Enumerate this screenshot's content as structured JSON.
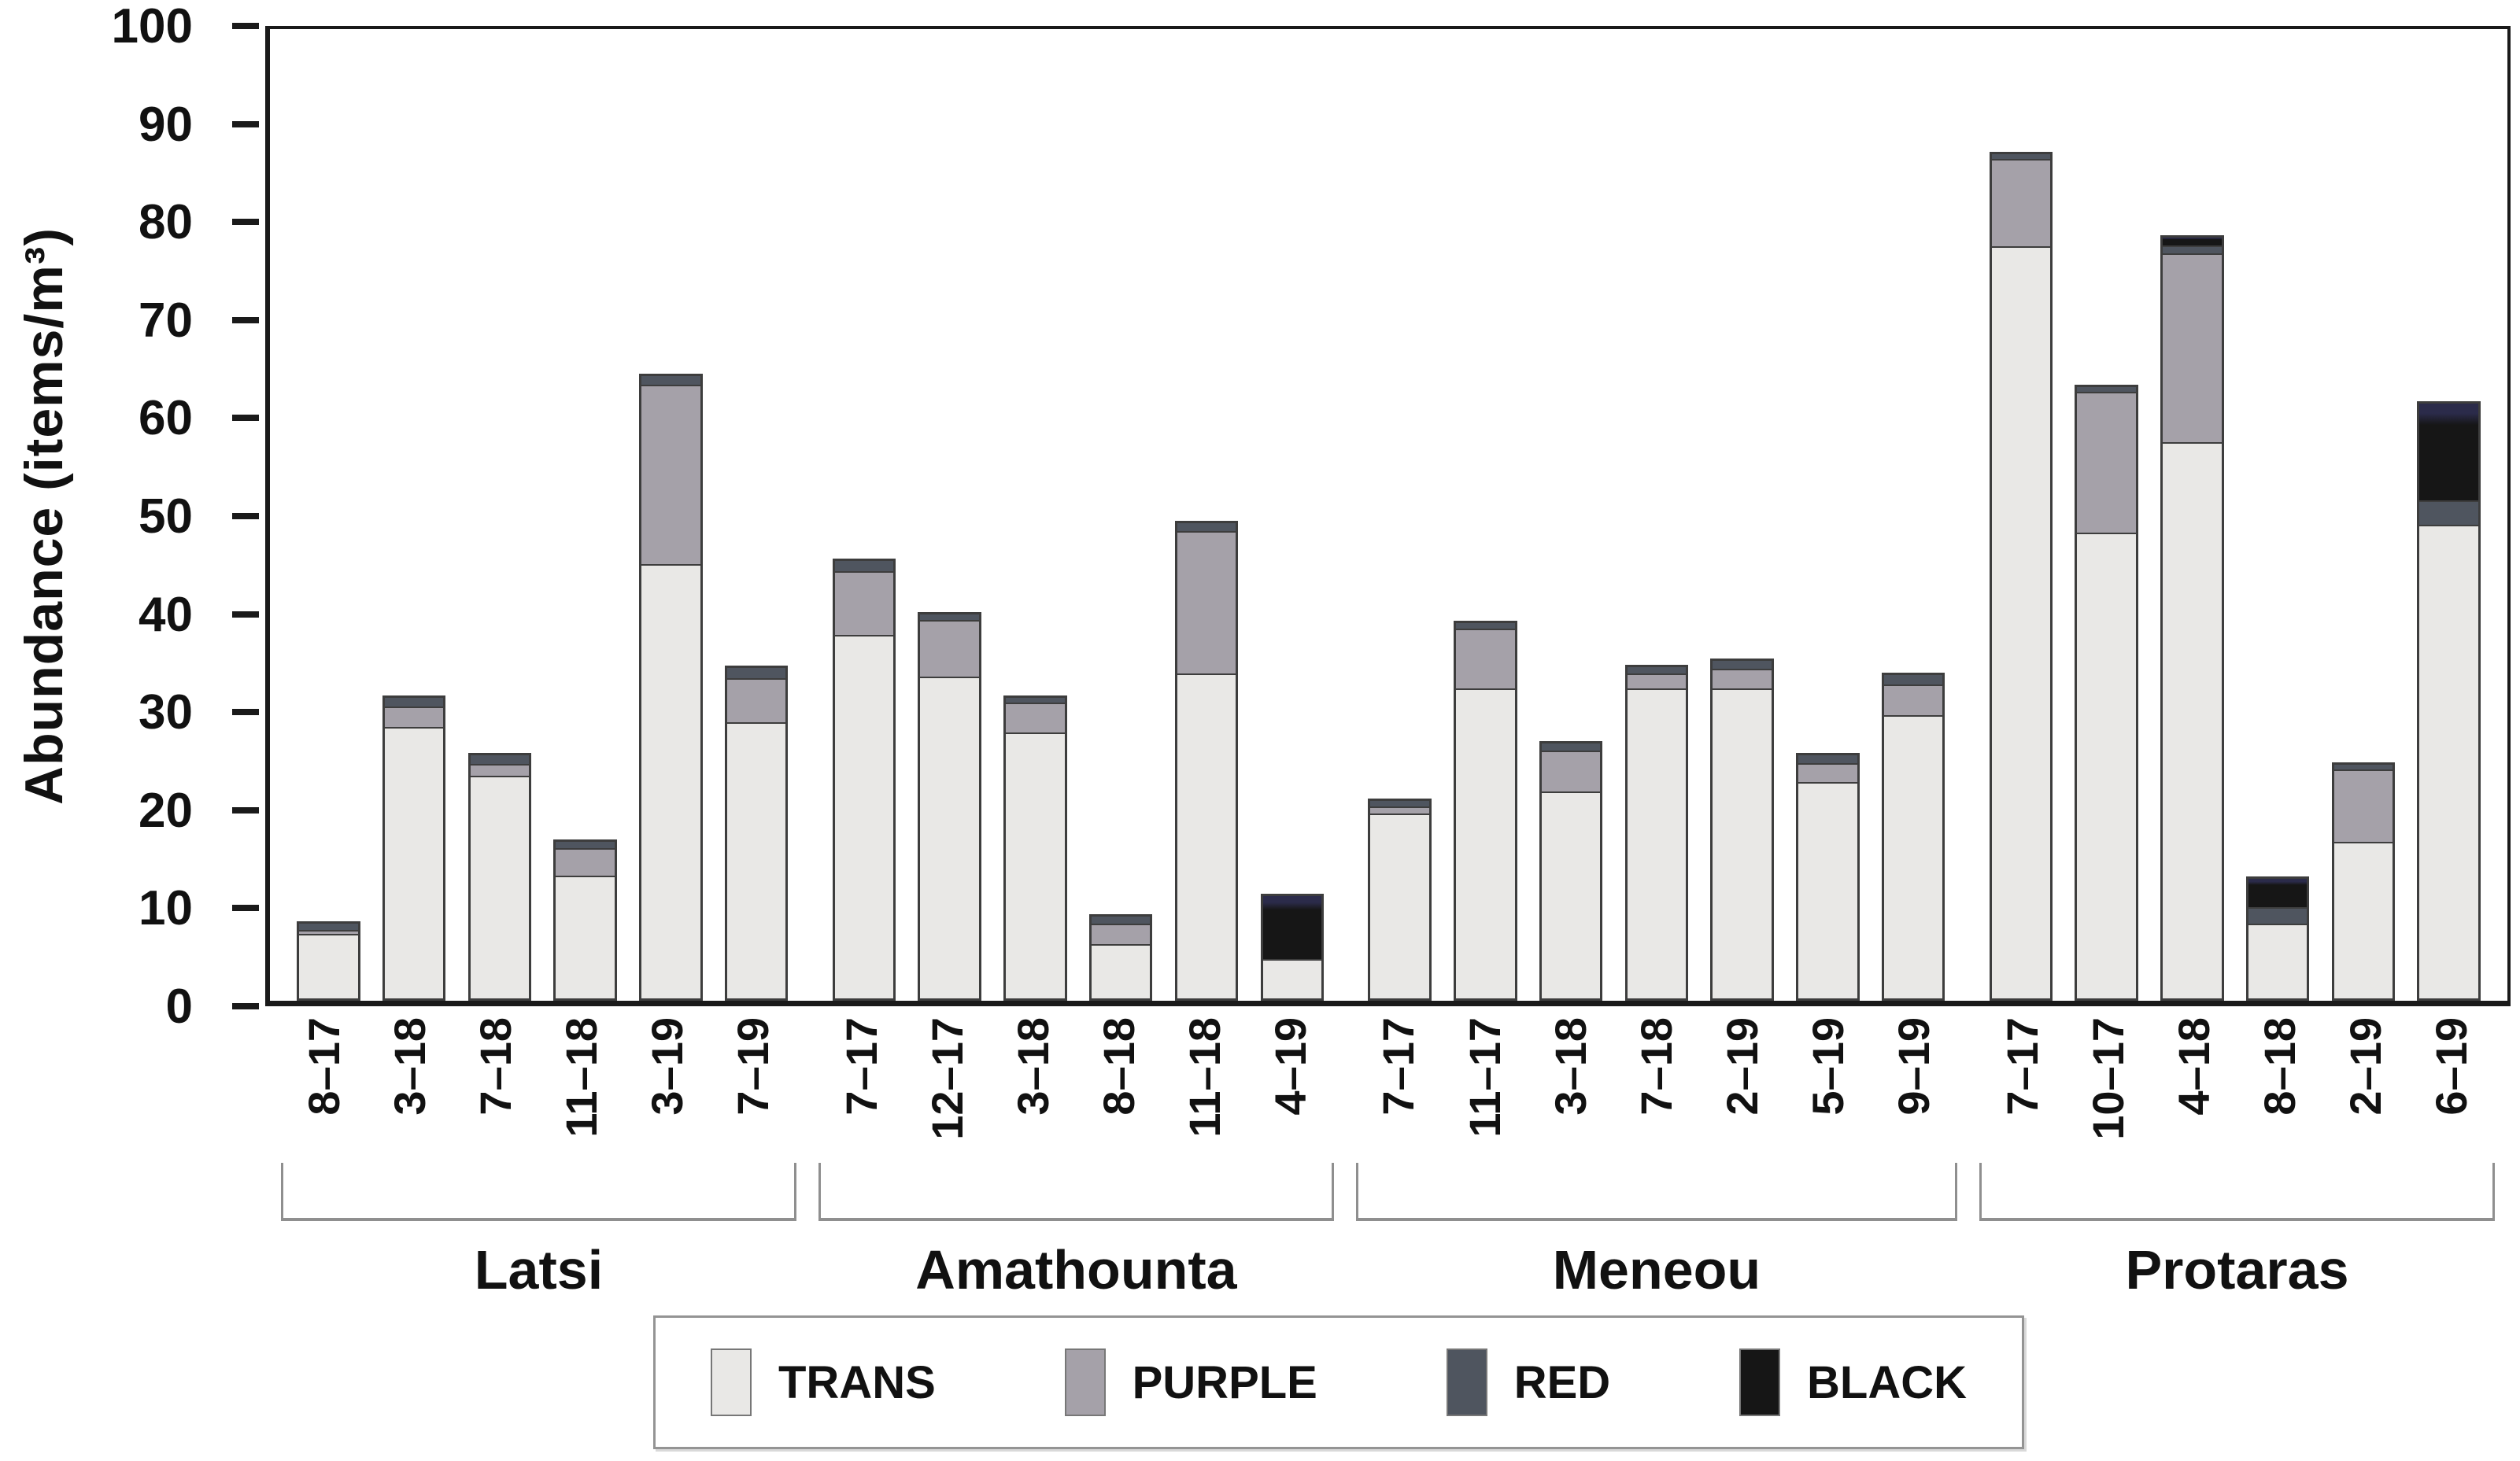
{
  "chart_data": {
    "type": "bar",
    "stacked": true,
    "title": "",
    "xlabel": "",
    "ylabel": "Abundance (items/m³)",
    "ylim": [
      0,
      100
    ],
    "yticks": [
      0,
      10,
      20,
      30,
      40,
      50,
      60,
      70,
      80,
      90,
      100
    ],
    "grid": false,
    "legend_position": "bottom",
    "stack_order": [
      "TRANS",
      "PURPLE",
      "RED",
      "BLACK"
    ],
    "colors": {
      "TRANS": "#e9e8e6",
      "PURPLE": "#a5a1a9",
      "RED": "#4f555f",
      "BLACK": "#161616"
    },
    "groups": [
      {
        "name": "Latsi",
        "bars": [
          {
            "label": "8–17",
            "TRANS": 7.2,
            "PURPLE": 0.3,
            "RED": 0.7,
            "BLACK": 0
          },
          {
            "label": "3–18",
            "TRANS": 28.5,
            "PURPLE": 2.0,
            "RED": 0.9,
            "BLACK": 0
          },
          {
            "label": "7–18",
            "TRANS": 23.5,
            "PURPLE": 1.1,
            "RED": 0.9,
            "BLACK": 0
          },
          {
            "label": "11–18",
            "TRANS": 13.1,
            "PURPLE": 2.8,
            "RED": 0.7,
            "BLACK": 0
          },
          {
            "label": "3–19",
            "TRANS": 45.1,
            "PURPLE": 18.5,
            "RED": 0.9,
            "BLACK": 0
          },
          {
            "label": "7–19",
            "TRANS": 28.9,
            "PURPLE": 4.5,
            "RED": 1.1,
            "BLACK": 0
          }
        ]
      },
      {
        "name": "Amathounta",
        "bars": [
          {
            "label": "7–17",
            "TRANS": 37.9,
            "PURPLE": 6.5,
            "RED": 1.1,
            "BLACK": 0
          },
          {
            "label": "12–17",
            "TRANS": 33.6,
            "PURPLE": 5.8,
            "RED": 0.6,
            "BLACK": 0
          },
          {
            "label": "3–18",
            "TRANS": 27.9,
            "PURPLE": 3.0,
            "RED": 0.5,
            "BLACK": 0
          },
          {
            "label": "8–18",
            "TRANS": 6.0,
            "PURPLE": 2.1,
            "RED": 0.8,
            "BLACK": 0
          },
          {
            "label": "11–18",
            "TRANS": 33.8,
            "PURPLE": 14.8,
            "RED": 0.8,
            "BLACK": 0
          },
          {
            "label": "4–19",
            "TRANS": 4.1,
            "PURPLE": 0,
            "RED": 0,
            "BLACK": 6.9
          }
        ]
      },
      {
        "name": "Meneou",
        "bars": [
          {
            "label": "7–17",
            "TRANS": 19.6,
            "PURPLE": 0.6,
            "RED": 0.6,
            "BLACK": 0
          },
          {
            "label": "11–17",
            "TRANS": 32.4,
            "PURPLE": 6.1,
            "RED": 0.6,
            "BLACK": 0
          },
          {
            "label": "3–18",
            "TRANS": 21.8,
            "PURPLE": 4.2,
            "RED": 0.7,
            "BLACK": 0
          },
          {
            "label": "7–18",
            "TRANS": 32.5,
            "PURPLE": 1.4,
            "RED": 0.7,
            "BLACK": 0
          },
          {
            "label": "2–19",
            "TRANS": 32.5,
            "PURPLE": 1.9,
            "RED": 0.8,
            "BLACK": 0
          },
          {
            "label": "5–19",
            "TRANS": 22.8,
            "PURPLE": 1.9,
            "RED": 0.8,
            "BLACK": 0
          },
          {
            "label": "9–19",
            "TRANS": 29.7,
            "PURPLE": 3.1,
            "RED": 1.0,
            "BLACK": 0
          }
        ]
      },
      {
        "name": "Protaras",
        "bars": [
          {
            "label": "7–17",
            "TRANS": 78.0,
            "PURPLE": 8.9,
            "RED": 0.5,
            "BLACK": 0
          },
          {
            "label": "10–17",
            "TRANS": 48.4,
            "PURPLE": 14.5,
            "RED": 0.5,
            "BLACK": 0
          },
          {
            "label": "4–18",
            "TRANS": 57.8,
            "PURPLE": 19.5,
            "RED": 0.7,
            "BLACK": 0.8
          },
          {
            "label": "8–18",
            "TRANS": 8.0,
            "PURPLE": 0,
            "RED": 1.7,
            "BLACK": 3.1
          },
          {
            "label": "2–19",
            "TRANS": 16.5,
            "PURPLE": 7.5,
            "RED": 0.5,
            "BLACK": 0
          },
          {
            "label": "6–19",
            "TRANS": 49.2,
            "PURPLE": 0,
            "RED": 2.4,
            "BLACK": 10.1
          }
        ]
      }
    ],
    "legend_entries": [
      "TRANS",
      "PURPLE",
      "RED",
      "BLACK"
    ]
  }
}
